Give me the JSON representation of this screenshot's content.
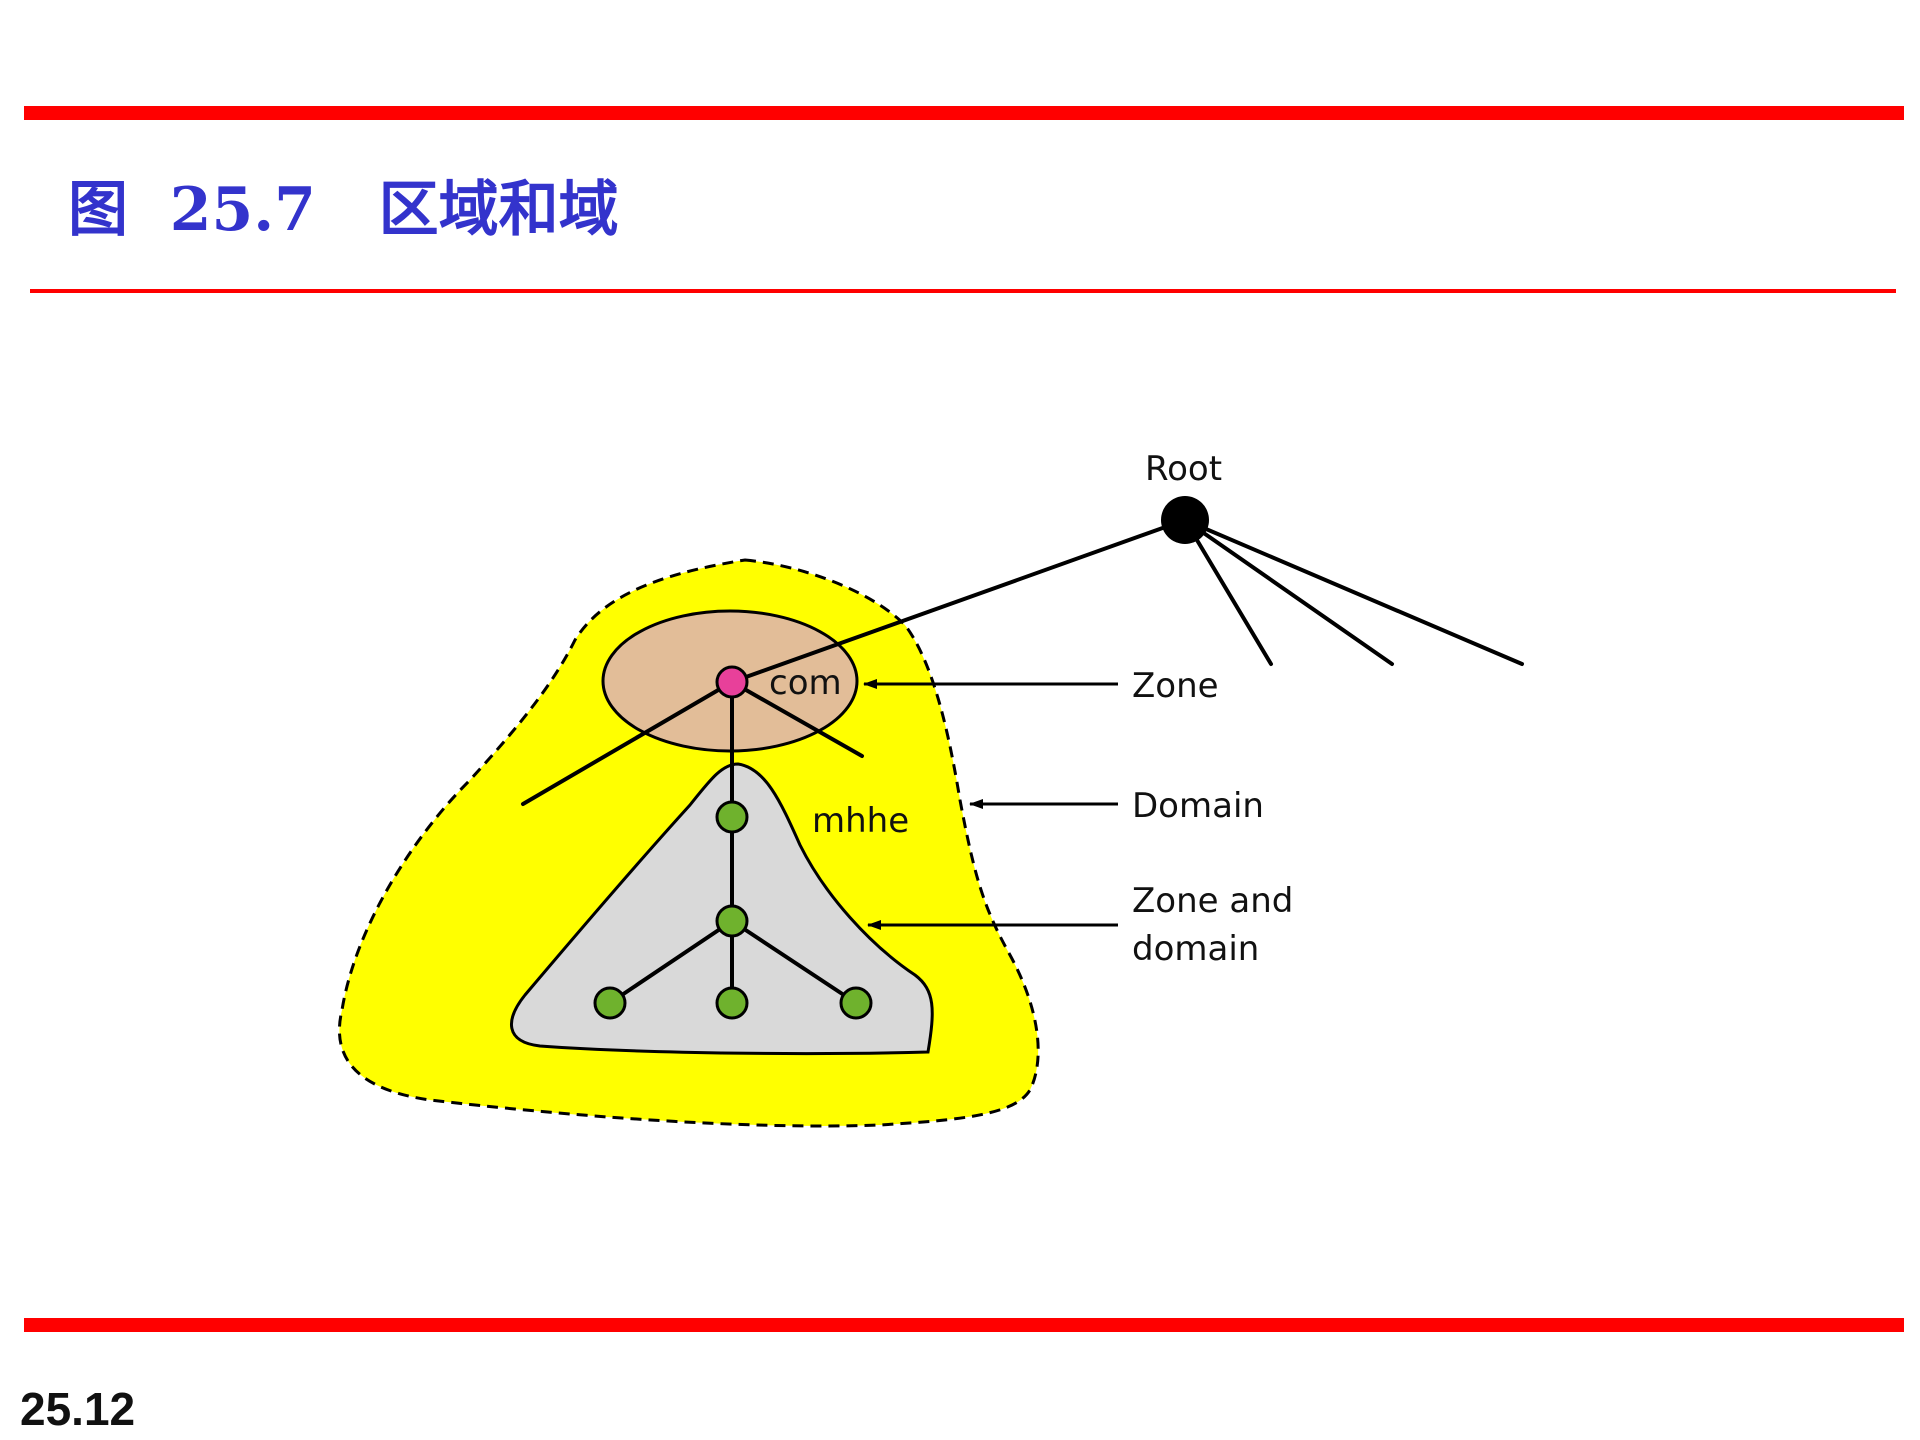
{
  "slide": {
    "title": "图  25.7   区域和域",
    "page_number": "25.12"
  },
  "diagram": {
    "root_label": "Root",
    "com_label": "com",
    "mhhe_label": "mhhe",
    "callouts": {
      "zone": "Zone",
      "domain": "Domain",
      "zone_and_domain_line1": "Zone and",
      "zone_and_domain_line2": "domain"
    },
    "colors": {
      "accent_red": "#ff0000",
      "title_blue": "#3333cc",
      "domain_fill": "#ffff00",
      "zone_fill": "#e2bd98",
      "zone_domain_fill": "#d9d9d9",
      "com_node": "#e8409a",
      "leaf_node": "#6fb22d",
      "root_node": "#000000"
    }
  }
}
